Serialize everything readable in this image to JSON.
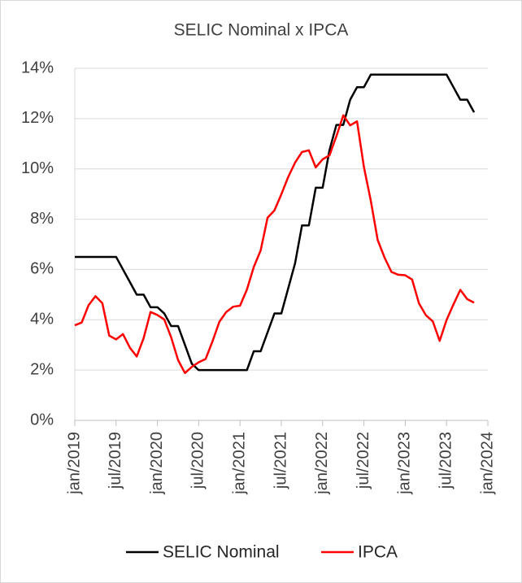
{
  "chart_data": {
    "type": "line",
    "title": "SELIC Nominal x IPCA",
    "categories": [
      "jan/2019",
      null,
      null,
      null,
      null,
      null,
      "jul/2019",
      null,
      null,
      null,
      null,
      null,
      "jan/2020",
      null,
      null,
      null,
      null,
      null,
      "jul/2020",
      null,
      null,
      null,
      null,
      null,
      "jan/2021",
      null,
      null,
      null,
      null,
      null,
      "jul/2021",
      null,
      null,
      null,
      null,
      null,
      "jan/2022",
      null,
      null,
      null,
      null,
      null,
      "jul/2022",
      null,
      null,
      null,
      null,
      null,
      "jan/2023",
      null,
      null,
      null,
      null,
      null,
      "jul/2023",
      null,
      null,
      null,
      null,
      null,
      "jan/2024"
    ],
    "series": [
      {
        "name": "SELIC Nominal",
        "color": "#000000",
        "values": [
          6.5,
          6.5,
          6.5,
          6.5,
          6.5,
          6.5,
          6.5,
          6.0,
          5.5,
          5.0,
          5.0,
          4.5,
          4.5,
          4.25,
          3.75,
          3.75,
          3.0,
          2.25,
          2.0,
          2.0,
          2.0,
          2.0,
          2.0,
          2.0,
          2.0,
          2.0,
          2.75,
          2.75,
          3.5,
          4.25,
          4.25,
          5.25,
          6.25,
          7.75,
          7.75,
          9.25,
          9.25,
          10.75,
          11.75,
          11.75,
          12.75,
          13.25,
          13.25,
          13.75,
          13.75,
          13.75,
          13.75,
          13.75,
          13.75,
          13.75,
          13.75,
          13.75,
          13.75,
          13.75,
          13.75,
          13.25,
          12.75,
          12.75,
          12.25,
          null,
          null
        ]
      },
      {
        "name": "IPCA",
        "color": "#ff0000",
        "values": [
          3.78,
          3.89,
          4.58,
          4.94,
          4.66,
          3.37,
          3.22,
          3.43,
          2.89,
          2.54,
          3.27,
          4.31,
          4.19,
          4.01,
          3.3,
          2.4,
          1.88,
          2.13,
          2.31,
          2.44,
          3.14,
          3.92,
          4.31,
          4.52,
          4.56,
          5.2,
          6.1,
          6.76,
          8.06,
          8.35,
          8.99,
          9.68,
          10.25,
          10.67,
          10.74,
          10.06,
          10.38,
          10.54,
          11.3,
          12.13,
          11.73,
          11.89,
          10.07,
          8.73,
          7.17,
          6.47,
          5.9,
          5.79,
          5.77,
          5.6,
          4.65,
          4.18,
          3.94,
          3.16,
          3.99,
          4.61,
          5.19,
          4.82,
          4.68,
          null,
          null
        ]
      }
    ],
    "ylim": [
      0,
      14
    ],
    "yticks": [
      {
        "value": 0,
        "label": "0%"
      },
      {
        "value": 2,
        "label": "2%"
      },
      {
        "value": 4,
        "label": "4%"
      },
      {
        "value": 6,
        "label": "6%"
      },
      {
        "value": 8,
        "label": "8%"
      },
      {
        "value": 10,
        "label": "10%"
      },
      {
        "value": 12,
        "label": "12%"
      },
      {
        "value": 14,
        "label": "14%"
      }
    ],
    "grid": true,
    "legend": "bottom"
  }
}
